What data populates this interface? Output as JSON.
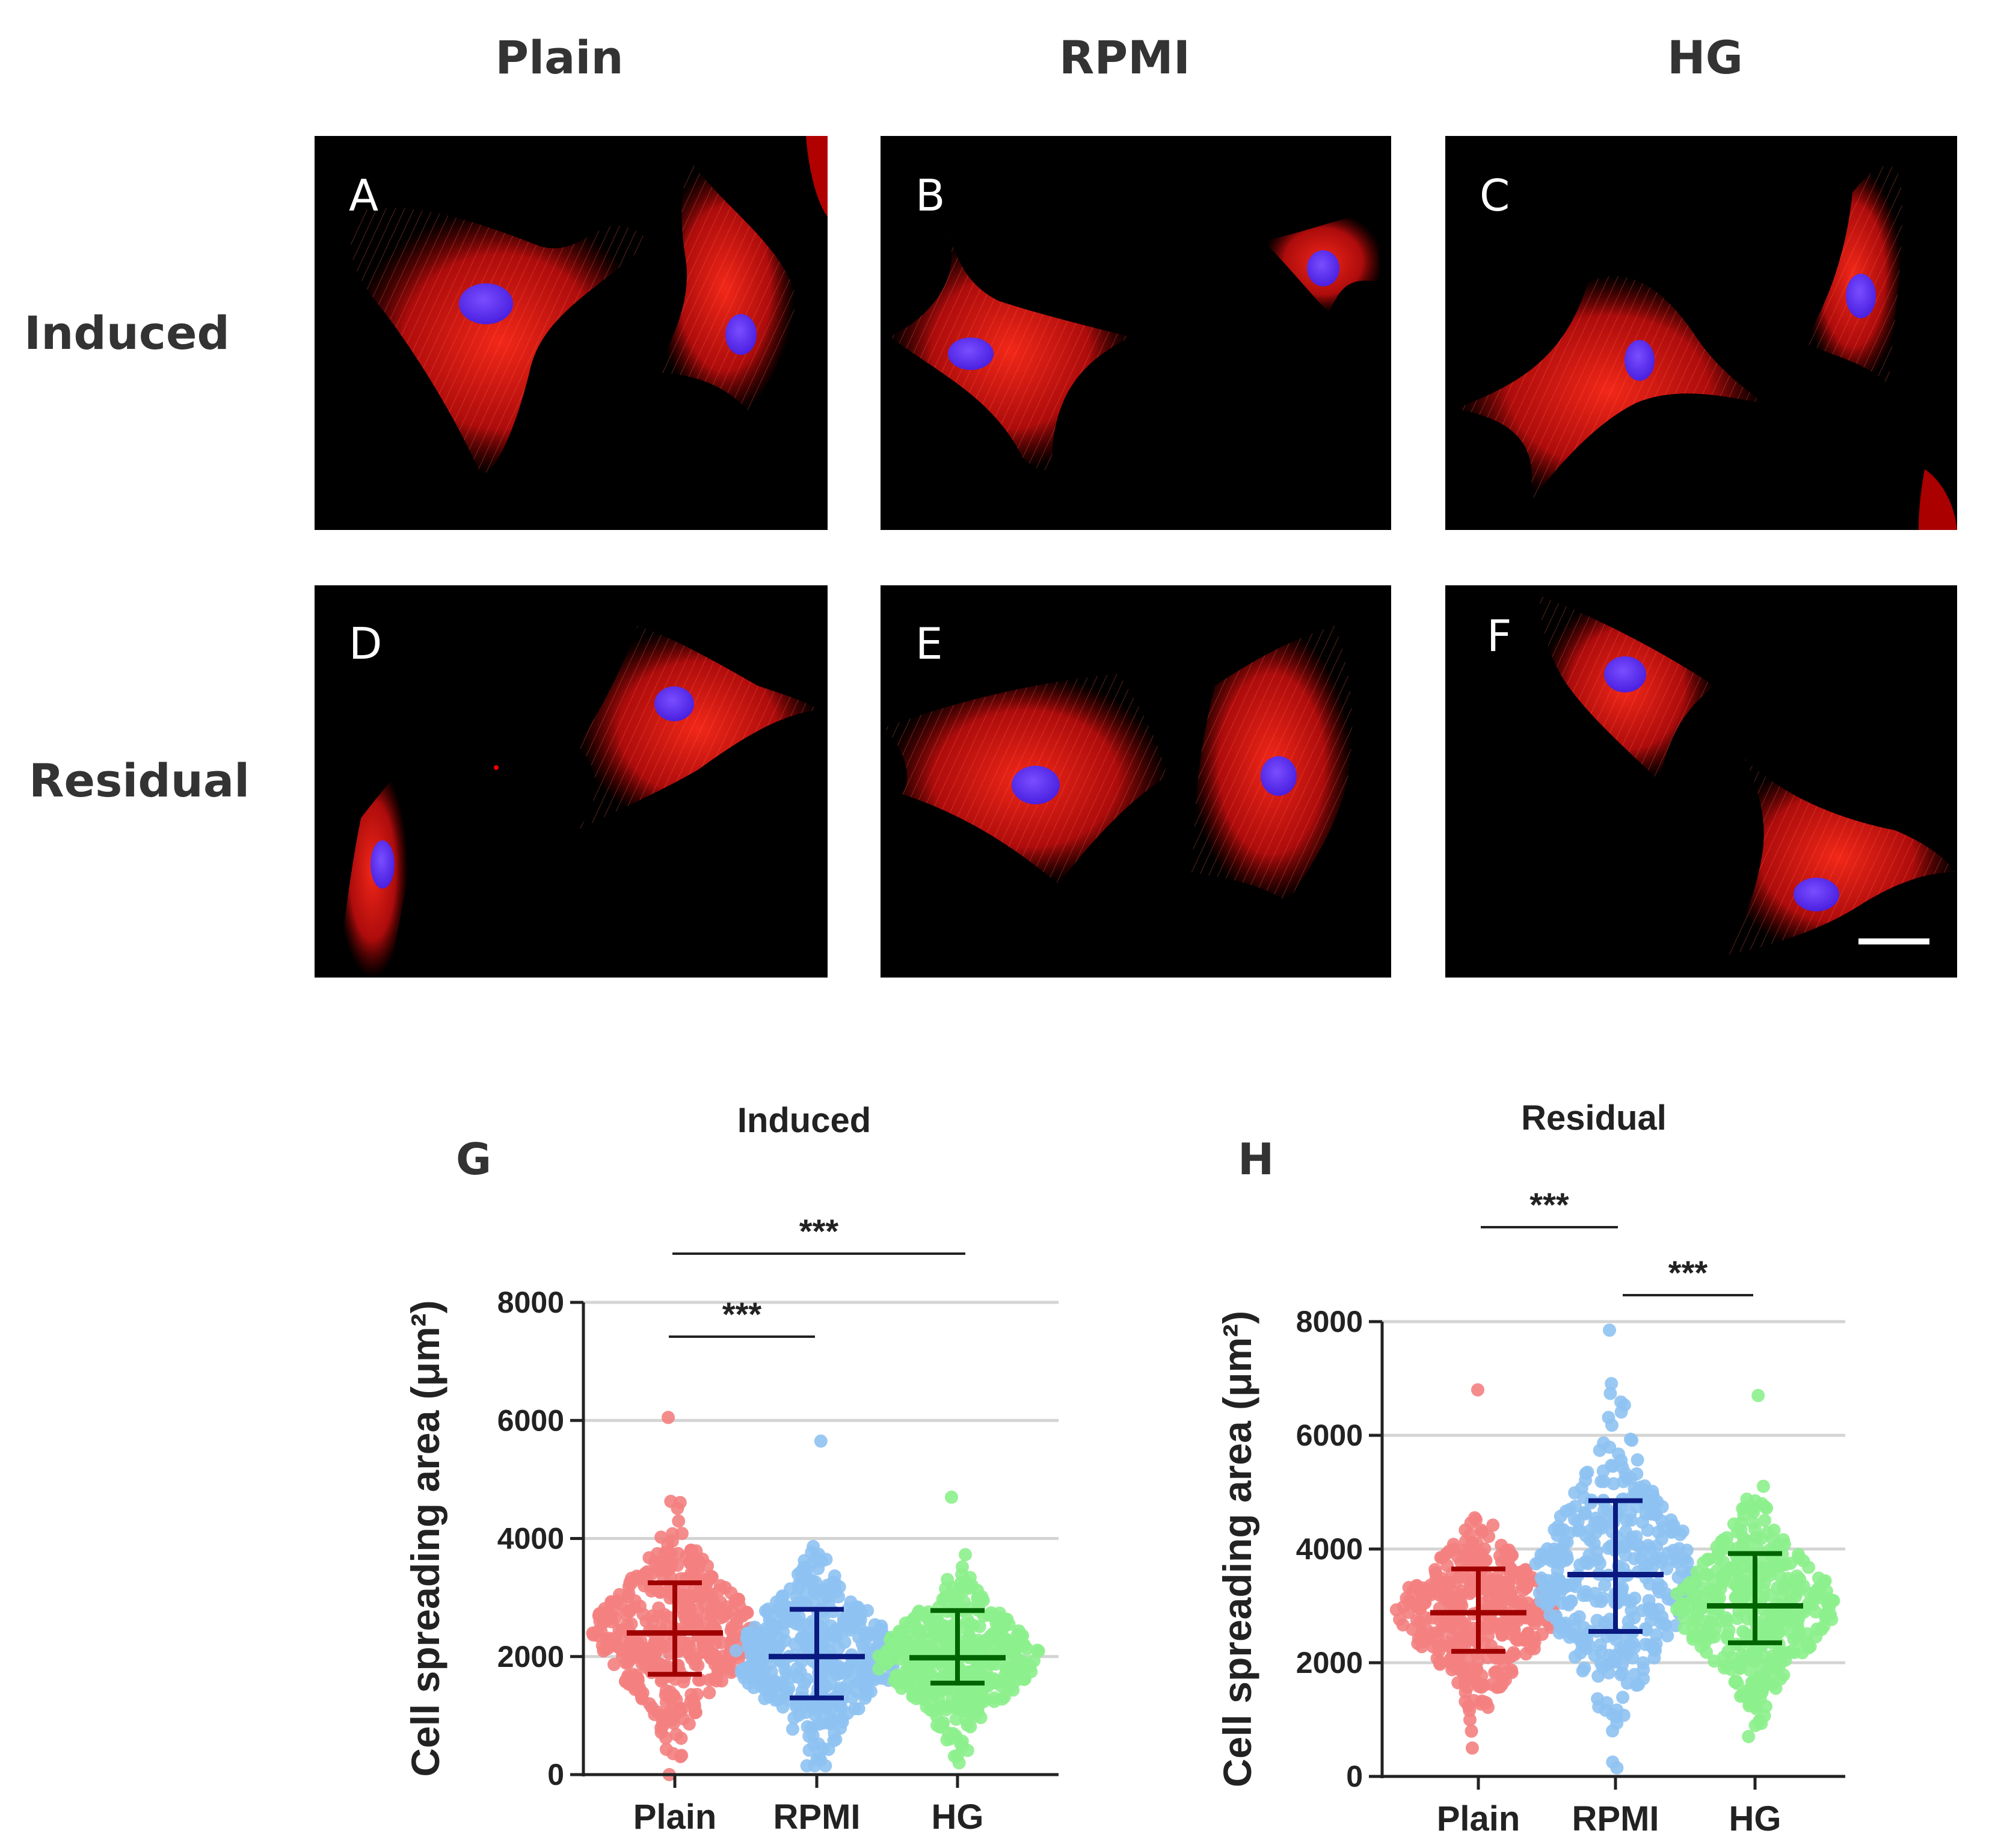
{
  "column_headers": [
    "Plain",
    "RPMI",
    "HG"
  ],
  "row_headers": [
    "Induced",
    "Residual"
  ],
  "panels": [
    "A",
    "B",
    "C",
    "D",
    "E",
    "F"
  ],
  "stain_colors": {
    "actin": "#e01010",
    "nucleus": "#5a2cff",
    "background": "#000000"
  },
  "chart_data": [
    {
      "type": "scatter",
      "panel_label": "G",
      "title": "Induced",
      "ylabel": "Cell spreading area (μm²)",
      "categories": [
        "Plain",
        "RPMI",
        "HG"
      ],
      "ylim": [
        0,
        8000
      ],
      "yticks": [
        0,
        2000,
        4000,
        6000,
        8000
      ],
      "grid": true,
      "colors": [
        "#f47f7f",
        "#8ec2f2",
        "#8cf08c"
      ],
      "bar_colors": [
        "#a00000",
        "#0a1a80",
        "#006400"
      ],
      "summary": [
        {
          "category": "Plain",
          "mean": 2400,
          "sd_low": 1700,
          "sd_high": 3250,
          "min": 0,
          "max": 6050
        },
        {
          "category": "RPMI",
          "mean": 2000,
          "sd_low": 1300,
          "sd_high": 2800,
          "min": 150,
          "max": 5650
        },
        {
          "category": "HG",
          "mean": 1980,
          "sd_low": 1550,
          "sd_high": 2780,
          "min": 200,
          "max": 4700
        }
      ],
      "significance": [
        {
          "from": "Plain",
          "to": "RPMI",
          "label": "***"
        },
        {
          "from": "Plain",
          "to": "HG",
          "label": "***"
        }
      ]
    },
    {
      "type": "scatter",
      "panel_label": "H",
      "title": "Residual",
      "ylabel": "Cell spreading area (μm²)",
      "categories": [
        "Plain",
        "RPMI",
        "HG"
      ],
      "ylim": [
        0,
        8000
      ],
      "yticks": [
        0,
        2000,
        4000,
        6000,
        8000
      ],
      "grid": true,
      "colors": [
        "#f47f7f",
        "#8ec2f2",
        "#8cf08c"
      ],
      "bar_colors": [
        "#a00000",
        "#0a1a80",
        "#006400"
      ],
      "summary": [
        {
          "category": "Plain",
          "mean": 2880,
          "sd_low": 2200,
          "sd_high": 3650,
          "min": 500,
          "max": 6800
        },
        {
          "category": "RPMI",
          "mean": 3550,
          "sd_low": 2550,
          "sd_high": 4850,
          "min": 150,
          "max": 7850
        },
        {
          "category": "HG",
          "mean": 3000,
          "sd_low": 2350,
          "sd_high": 3920,
          "min": 700,
          "max": 6700
        }
      ],
      "significance": [
        {
          "from": "Plain",
          "to": "RPMI",
          "label": "***"
        },
        {
          "from": "RPMI",
          "to": "HG",
          "label": "***"
        }
      ]
    }
  ]
}
